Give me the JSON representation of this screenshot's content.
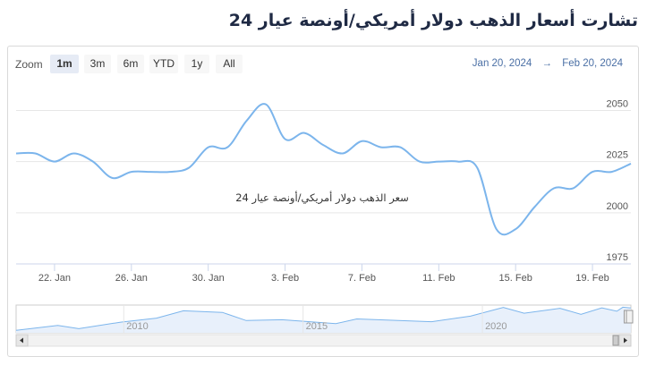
{
  "page": {
    "title": "تشارت أسعار الذهب دولار أمريكي/أونصة عيار 24"
  },
  "zoom": {
    "label": "Zoom",
    "buttons": [
      {
        "label": "1m",
        "active": true
      },
      {
        "label": "3m",
        "active": false
      },
      {
        "label": "6m",
        "active": false
      },
      {
        "label": "YTD",
        "active": false
      },
      {
        "label": "1y",
        "active": false
      },
      {
        "label": "All",
        "active": false
      }
    ]
  },
  "range": {
    "from": "Jan 20, 2024",
    "separator": "→",
    "to": "Feb 20, 2024"
  },
  "colors": {
    "line": "#7cb5ec",
    "grid": "#e6e6e6",
    "axis_text": "#555555",
    "navigator_fill": "#e8f0fb"
  },
  "chart_data": {
    "type": "line",
    "series": [
      {
        "name": "سعر الذهب دولار أمريكي/أونصة عيار 24",
        "points": [
          [
            "2024-01-20",
            2029
          ],
          [
            "2024-01-21",
            2029
          ],
          [
            "2024-01-22",
            2025
          ],
          [
            "2024-01-23",
            2029
          ],
          [
            "2024-01-24",
            2025
          ],
          [
            "2024-01-25",
            2017
          ],
          [
            "2024-01-26",
            2020
          ],
          [
            "2024-01-27",
            2020
          ],
          [
            "2024-01-28",
            2020
          ],
          [
            "2024-01-29",
            2022
          ],
          [
            "2024-01-30",
            2032
          ],
          [
            "2024-01-31",
            2032
          ],
          [
            "2024-02-01",
            2045
          ],
          [
            "2024-02-02",
            2053
          ],
          [
            "2024-02-03",
            2036
          ],
          [
            "2024-02-04",
            2039
          ],
          [
            "2024-02-05",
            2033
          ],
          [
            "2024-02-06",
            2029
          ],
          [
            "2024-02-07",
            2035
          ],
          [
            "2024-02-08",
            2032
          ],
          [
            "2024-02-09",
            2032
          ],
          [
            "2024-02-10",
            2025
          ],
          [
            "2024-02-11",
            2025
          ],
          [
            "2024-02-12",
            2025
          ],
          [
            "2024-02-13",
            2022
          ],
          [
            "2024-02-14",
            1992
          ],
          [
            "2024-02-15",
            1992
          ],
          [
            "2024-02-16",
            2003
          ],
          [
            "2024-02-17",
            2012
          ],
          [
            "2024-02-18",
            2012
          ],
          [
            "2024-02-19",
            2020
          ],
          [
            "2024-02-20",
            2020
          ],
          [
            "2024-02-21",
            2024
          ]
        ]
      }
    ],
    "y_ticks": [
      1975,
      2000,
      2025,
      2050
    ],
    "ylim": [
      1975,
      2062
    ],
    "x_ticks": [
      "22. Jan",
      "26. Jan",
      "30. Jan",
      "3. Feb",
      "7. Feb",
      "11. Feb",
      "15. Feb",
      "19. Feb"
    ],
    "x_tick_dates": [
      "2024-01-22",
      "2024-01-26",
      "2024-01-30",
      "2024-02-03",
      "2024-02-07",
      "2024-02-11",
      "2024-02-15",
      "2024-02-19"
    ],
    "xlim": [
      "2024-01-20",
      "2024-02-21"
    ],
    "navigator": {
      "year_labels": [
        "2010",
        "2015",
        "2020"
      ],
      "year_label_dates": [
        "2010-01-01",
        "2015-01-01",
        "2020-01-01"
      ],
      "xlim": [
        "2007-01-01",
        "2024-02-21"
      ],
      "points": [
        [
          "2007-01-01",
          650
        ],
        [
          "2008-03-01",
          950
        ],
        [
          "2008-10-01",
          750
        ],
        [
          "2009-12-01",
          1150
        ],
        [
          "2010-12-01",
          1400
        ],
        [
          "2011-09-01",
          1850
        ],
        [
          "2012-10-01",
          1750
        ],
        [
          "2013-06-01",
          1250
        ],
        [
          "2014-06-01",
          1300
        ],
        [
          "2015-12-01",
          1060
        ],
        [
          "2016-07-01",
          1350
        ],
        [
          "2018-08-01",
          1180
        ],
        [
          "2019-09-01",
          1520
        ],
        [
          "2020-08-01",
          2060
        ],
        [
          "2021-03-01",
          1700
        ],
        [
          "2022-03-01",
          2000
        ],
        [
          "2022-10-01",
          1630
        ],
        [
          "2023-05-01",
          2030
        ],
        [
          "2023-10-01",
          1820
        ],
        [
          "2023-12-01",
          2070
        ],
        [
          "2024-02-20",
          2020
        ]
      ],
      "ylim": [
        500,
        2200
      ]
    }
  }
}
